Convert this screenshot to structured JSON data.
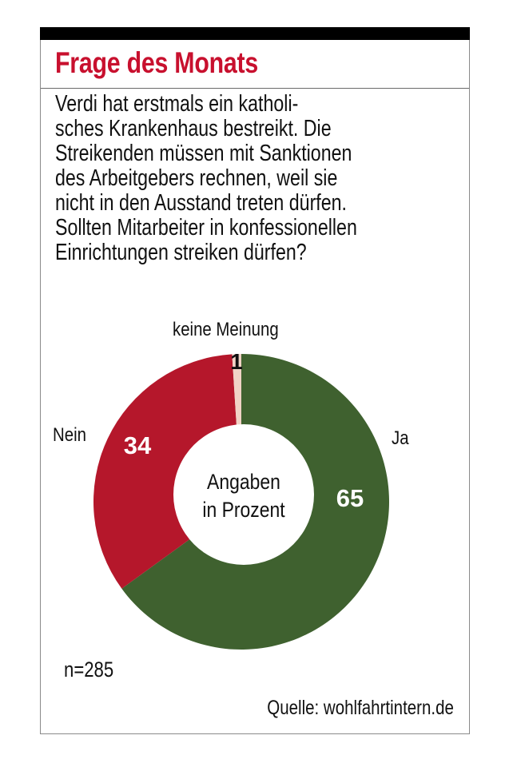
{
  "header": {
    "title": "Frage des Monats",
    "title_color": "#c8102e"
  },
  "question_lines": [
    "Verdi hat erstmals ein katholi-",
    "sches Krankenhaus bestreikt. Die",
    "Streikenden müssen mit Sanktionen",
    "des Arbeitgebers rechnen, weil sie",
    "nicht in den Ausstand treten dürfen.",
    "Sollten Mitarbeiter in konfessionellen",
    "Einrichtungen streiken dürfen?"
  ],
  "chart_data": {
    "type": "pie",
    "variant": "donut",
    "title": "Frage des Monats",
    "center_label": [
      "Angaben",
      "in Prozent"
    ],
    "unit": "Prozent",
    "slices": [
      {
        "label": "Ja",
        "value": 65,
        "color": "#3f612f",
        "value_color": "#ffffff"
      },
      {
        "label": "Nein",
        "value": 34,
        "color": "#b5172b",
        "value_color": "#ffffff"
      },
      {
        "label": "keine Meinung",
        "value": 1,
        "color": "#f1d3c6",
        "value_color": "#111111"
      }
    ],
    "start_angle_deg": 0,
    "direction": "clockwise"
  },
  "footer": {
    "sample_size": "n=285",
    "source": "Quelle: wohlfahrtintern.de"
  }
}
